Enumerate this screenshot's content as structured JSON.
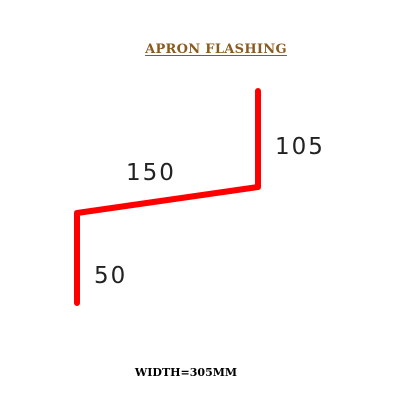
{
  "title": "APRON FLASHING",
  "dimensions": {
    "top_leg": "105",
    "slope": "150",
    "bottom_leg": "50"
  },
  "footer": "WIDTH=305MM",
  "colors": {
    "profile_line": "#ff0000",
    "title": "#8a5a1e",
    "text": "#222222"
  }
}
